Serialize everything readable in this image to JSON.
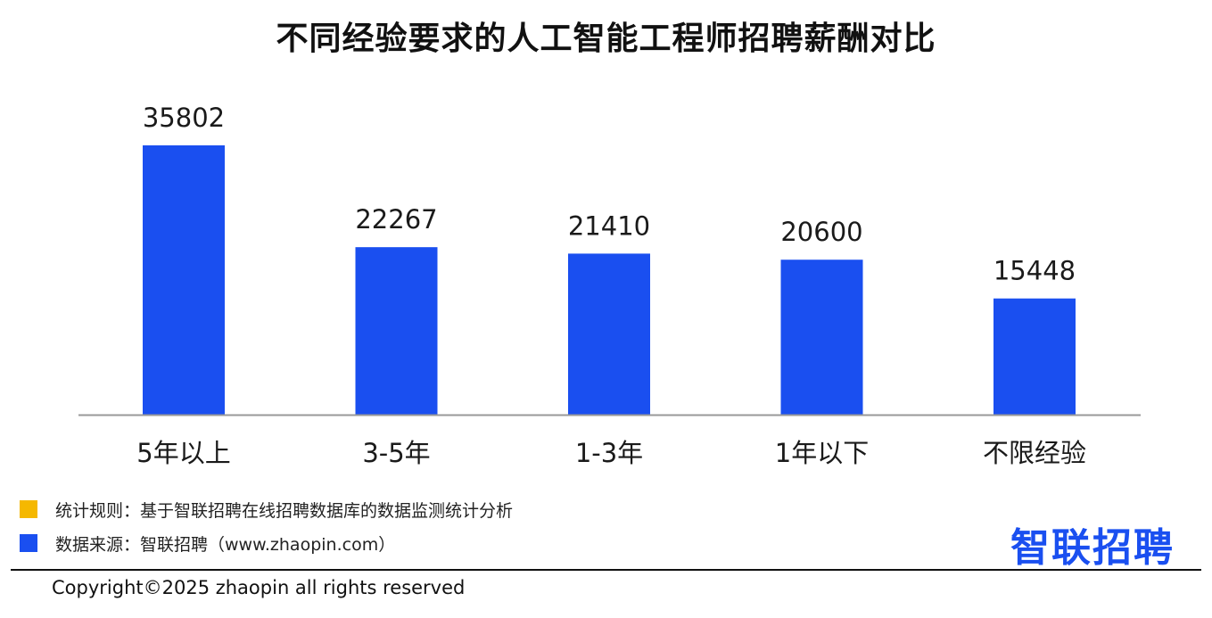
{
  "title": "不同经验要求的人工智能工程师招聘薪酬对比",
  "chart_data": {
    "type": "bar",
    "title": "不同经验要求的人工智能工程师招聘薪酬对比",
    "categories": [
      "5年以上",
      "3-5年",
      "1-3年",
      "1年以下",
      "不限经验"
    ],
    "values": [
      35802,
      22267,
      21410,
      20600,
      15448
    ],
    "xlabel": "",
    "ylabel": "",
    "ylim": [
      0,
      35802
    ],
    "grid": false,
    "bar_color": "#1a4ff0",
    "axis_color": "#999999"
  },
  "notes": [
    {
      "text": "统计规则：基于智联招聘在线招聘数据库的数据监测统计分析",
      "color": "#f5b800"
    },
    {
      "text": "数据来源：智联招聘（www.zhaopin.com）",
      "color": "#1a4ff0"
    }
  ],
  "logo": "智联招聘",
  "copyright": "Copyright©2025 zhaopin all rights reserved"
}
